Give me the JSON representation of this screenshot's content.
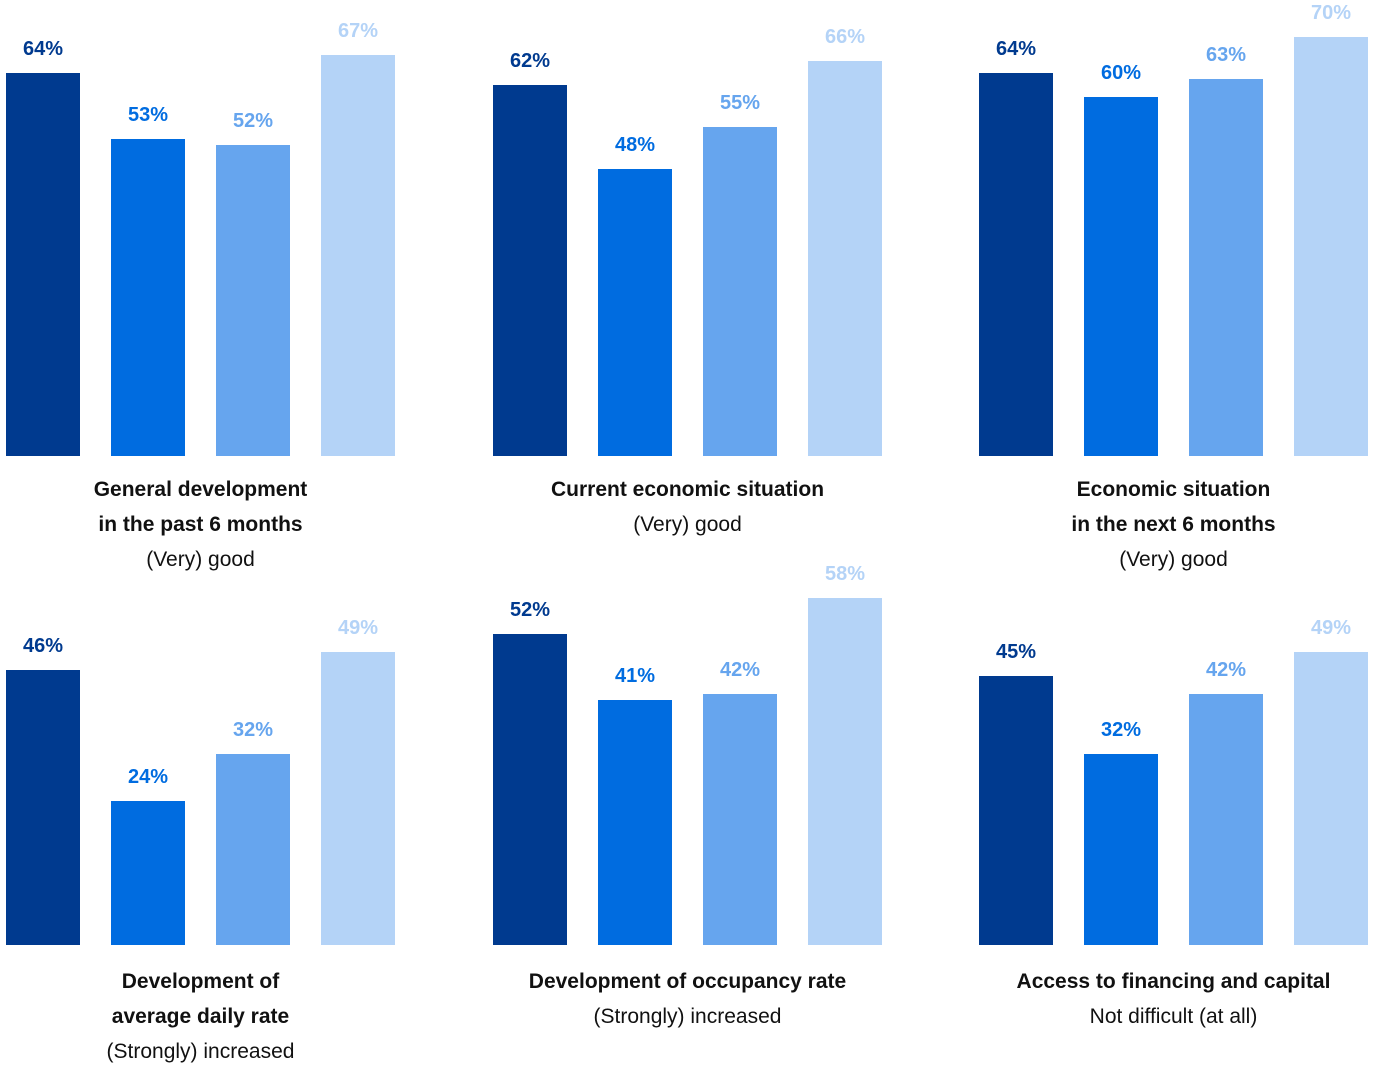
{
  "colors": [
    "#003A8F",
    "#006CE0",
    "#66A5EE",
    "#B4D3F7"
  ],
  "chart_data": [
    {
      "type": "bar",
      "title": "General development\nin the past 6 months",
      "subtitle": "(Very) good",
      "values": [
        64,
        53,
        52,
        67
      ],
      "labels": [
        "64%",
        "53%",
        "52%",
        "67%"
      ]
    },
    {
      "type": "bar",
      "title": "Current economic situation",
      "subtitle": "(Very) good",
      "values": [
        62,
        48,
        55,
        66
      ],
      "labels": [
        "62%",
        "48%",
        "55%",
        "66%"
      ]
    },
    {
      "type": "bar",
      "title": "Economic situation\nin the next 6 months",
      "subtitle": "(Very) good",
      "values": [
        64,
        60,
        63,
        70
      ],
      "labels": [
        "64%",
        "60%",
        "63%",
        "70%"
      ]
    },
    {
      "type": "bar",
      "title": "Development of\naverage daily rate",
      "subtitle": "(Strongly) increased",
      "values": [
        46,
        24,
        32,
        49
      ],
      "labels": [
        "46%",
        "24%",
        "32%",
        "49%"
      ]
    },
    {
      "type": "bar",
      "title": "Development of occupancy rate",
      "subtitle": "(Strongly) increased",
      "values": [
        52,
        41,
        42,
        58
      ],
      "labels": [
        "52%",
        "41%",
        "42%",
        "58%"
      ]
    },
    {
      "type": "bar",
      "title": "Access to financing and capital",
      "subtitle": "Not difficult (at all)",
      "values": [
        45,
        32,
        42,
        49
      ],
      "labels": [
        "45%",
        "32%",
        "42%",
        "49%"
      ]
    }
  ]
}
